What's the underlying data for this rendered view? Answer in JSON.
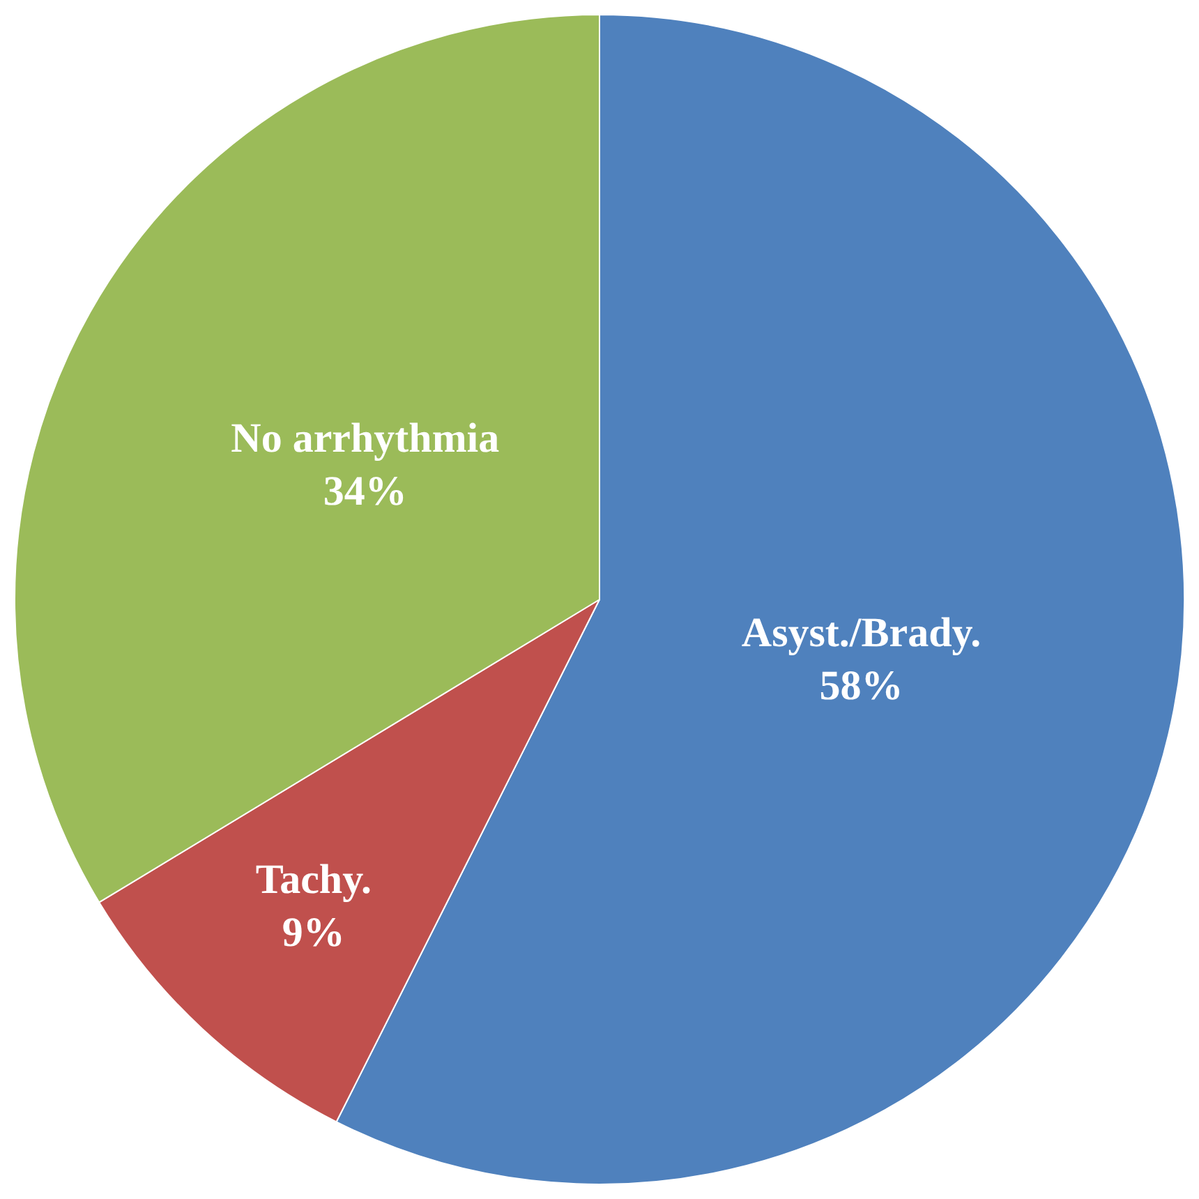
{
  "chart_data": {
    "type": "pie",
    "categories": [
      "Asyst./Brady.",
      "Tachy.",
      "No arrhythmia"
    ],
    "values": [
      58,
      9,
      34
    ],
    "colors": [
      "#4f81bd",
      "#c0504d",
      "#9bbb59"
    ],
    "value_labels": [
      "58%",
      "9%",
      "34%"
    ],
    "legend": false
  }
}
